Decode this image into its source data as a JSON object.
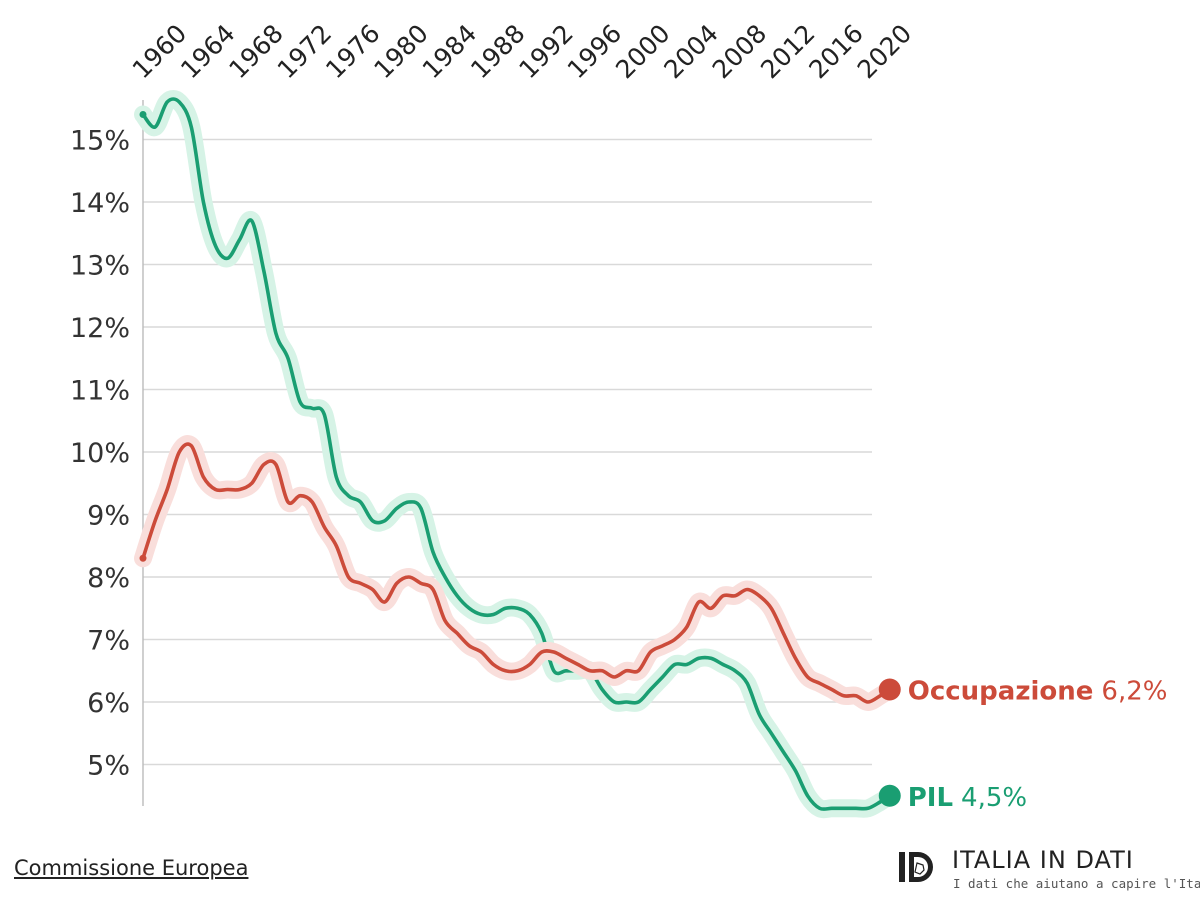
{
  "chart_data": {
    "type": "line",
    "title": "",
    "xlabel": "",
    "ylabel": "",
    "x_ticks": [
      "1960",
      "1964",
      "1968",
      "1972",
      "1976",
      "1980",
      "1984",
      "1988",
      "1992",
      "1996",
      "2000",
      "2004",
      "2008",
      "2012",
      "2016",
      "2020"
    ],
    "y_ticks": [
      "5%",
      "6%",
      "7%",
      "8%",
      "9%",
      "10%",
      "11%",
      "12%",
      "13%",
      "14%",
      "15%"
    ],
    "xlim": [
      1960,
      2020
    ],
    "ylim": [
      4.3,
      15.6
    ],
    "grid": true,
    "series": [
      {
        "name": "PIL",
        "value_label": "4,5%",
        "color": "#1a9e72",
        "halo": "#d6f3e6",
        "points": [
          [
            1960,
            15.4
          ],
          [
            1961,
            15.2
          ],
          [
            1962,
            15.6
          ],
          [
            1963,
            15.6
          ],
          [
            1964,
            15.2
          ],
          [
            1965,
            14.0
          ],
          [
            1966,
            13.3
          ],
          [
            1967,
            13.1
          ],
          [
            1968,
            13.4
          ],
          [
            1969,
            13.7
          ],
          [
            1970,
            12.9
          ],
          [
            1971,
            11.9
          ],
          [
            1972,
            11.5
          ],
          [
            1973,
            10.8
          ],
          [
            1974,
            10.7
          ],
          [
            1975,
            10.6
          ],
          [
            1976,
            9.6
          ],
          [
            1977,
            9.3
          ],
          [
            1978,
            9.2
          ],
          [
            1979,
            8.9
          ],
          [
            1980,
            8.9
          ],
          [
            1981,
            9.1
          ],
          [
            1982,
            9.2
          ],
          [
            1983,
            9.1
          ],
          [
            1984,
            8.4
          ],
          [
            1985,
            8.0
          ],
          [
            1986,
            7.7
          ],
          [
            1987,
            7.5
          ],
          [
            1988,
            7.4
          ],
          [
            1989,
            7.4
          ],
          [
            1990,
            7.5
          ],
          [
            1991,
            7.5
          ],
          [
            1992,
            7.4
          ],
          [
            1993,
            7.1
          ],
          [
            1994,
            6.5
          ],
          [
            1995,
            6.5
          ],
          [
            1996,
            6.5
          ],
          [
            1997,
            6.5
          ],
          [
            1998,
            6.2
          ],
          [
            1999,
            6.0
          ],
          [
            2000,
            6.0
          ],
          [
            2001,
            6.0
          ],
          [
            2002,
            6.2
          ],
          [
            2003,
            6.4
          ],
          [
            2004,
            6.6
          ],
          [
            2005,
            6.6
          ],
          [
            2006,
            6.7
          ],
          [
            2007,
            6.7
          ],
          [
            2008,
            6.6
          ],
          [
            2009,
            6.5
          ],
          [
            2010,
            6.3
          ],
          [
            2011,
            5.8
          ],
          [
            2012,
            5.5
          ],
          [
            2013,
            5.2
          ],
          [
            2014,
            4.9
          ],
          [
            2015,
            4.5
          ],
          [
            2016,
            4.3
          ],
          [
            2017,
            4.3
          ],
          [
            2018,
            4.3
          ],
          [
            2019,
            4.3
          ],
          [
            2020,
            4.3
          ],
          [
            2021,
            4.4
          ],
          [
            2021.8,
            4.5
          ]
        ]
      },
      {
        "name": "Occupazione",
        "value_label": "6,2%",
        "color": "#cc4b3a",
        "halo": "#f9dedb",
        "points": [
          [
            1960,
            8.3
          ],
          [
            1961,
            8.9
          ],
          [
            1962,
            9.4
          ],
          [
            1963,
            10.0
          ],
          [
            1964,
            10.1
          ],
          [
            1965,
            9.6
          ],
          [
            1966,
            9.4
          ],
          [
            1967,
            9.4
          ],
          [
            1968,
            9.4
          ],
          [
            1969,
            9.5
          ],
          [
            1970,
            9.8
          ],
          [
            1971,
            9.8
          ],
          [
            1972,
            9.2
          ],
          [
            1973,
            9.3
          ],
          [
            1974,
            9.2
          ],
          [
            1975,
            8.8
          ],
          [
            1976,
            8.5
          ],
          [
            1977,
            8.0
          ],
          [
            1978,
            7.9
          ],
          [
            1979,
            7.8
          ],
          [
            1980,
            7.6
          ],
          [
            1981,
            7.9
          ],
          [
            1982,
            8.0
          ],
          [
            1983,
            7.9
          ],
          [
            1984,
            7.8
          ],
          [
            1985,
            7.3
          ],
          [
            1986,
            7.1
          ],
          [
            1987,
            6.9
          ],
          [
            1988,
            6.8
          ],
          [
            1989,
            6.6
          ],
          [
            1990,
            6.5
          ],
          [
            1991,
            6.5
          ],
          [
            1992,
            6.6
          ],
          [
            1993,
            6.8
          ],
          [
            1994,
            6.8
          ],
          [
            1995,
            6.7
          ],
          [
            1996,
            6.6
          ],
          [
            1997,
            6.5
          ],
          [
            1998,
            6.5
          ],
          [
            1999,
            6.4
          ],
          [
            2000,
            6.5
          ],
          [
            2001,
            6.5
          ],
          [
            2002,
            6.8
          ],
          [
            2003,
            6.9
          ],
          [
            2004,
            7.0
          ],
          [
            2005,
            7.2
          ],
          [
            2006,
            7.6
          ],
          [
            2007,
            7.5
          ],
          [
            2008,
            7.7
          ],
          [
            2009,
            7.7
          ],
          [
            2010,
            7.8
          ],
          [
            2011,
            7.7
          ],
          [
            2012,
            7.5
          ],
          [
            2013,
            7.1
          ],
          [
            2014,
            6.7
          ],
          [
            2015,
            6.4
          ],
          [
            2016,
            6.3
          ],
          [
            2017,
            6.2
          ],
          [
            2018,
            6.1
          ],
          [
            2019,
            6.1
          ],
          [
            2020,
            6.0
          ],
          [
            2021,
            6.1
          ],
          [
            2021.8,
            6.2
          ]
        ]
      }
    ]
  },
  "source": "Commissione Europea",
  "brand": {
    "name": "ITALIA IN DATI",
    "tagline": "I dati che aiutano a capire l'Italia"
  }
}
